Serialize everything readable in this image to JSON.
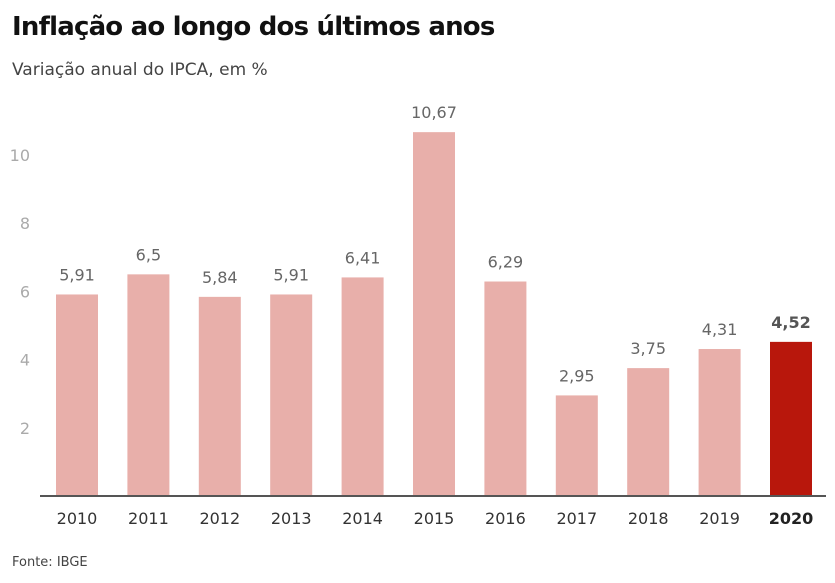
{
  "header": {
    "title": "Inflação ao longo dos últimos anos",
    "subtitle": "Variação anual do IPCA, em %"
  },
  "footer": {
    "source": "Fonte: IBGE"
  },
  "colors": {
    "bar": "#e8afaa",
    "highlight": "#b8170c",
    "axis": "#555555"
  },
  "chart_data": {
    "type": "bar",
    "title": "Inflação ao longo dos últimos anos",
    "subtitle": "Variação anual do IPCA, em %",
    "xlabel": "",
    "ylabel": "",
    "categories": [
      "2010",
      "2011",
      "2012",
      "2013",
      "2014",
      "2015",
      "2016",
      "2017",
      "2018",
      "2019",
      "2020"
    ],
    "values": [
      5.91,
      6.5,
      5.84,
      5.91,
      6.41,
      10.67,
      6.29,
      2.95,
      3.75,
      4.31,
      4.52
    ],
    "value_labels": [
      "5,91",
      "6,5",
      "5,84",
      "5,91",
      "6,41",
      "10,67",
      "6,29",
      "2,95",
      "3,75",
      "4,31",
      "4,52"
    ],
    "highlight_index": 10,
    "yticks": [
      2,
      4,
      6,
      8,
      10
    ],
    "ylim": [
      0,
      11
    ],
    "grid": false,
    "legend": "none",
    "source": "Fonte: IBGE"
  }
}
